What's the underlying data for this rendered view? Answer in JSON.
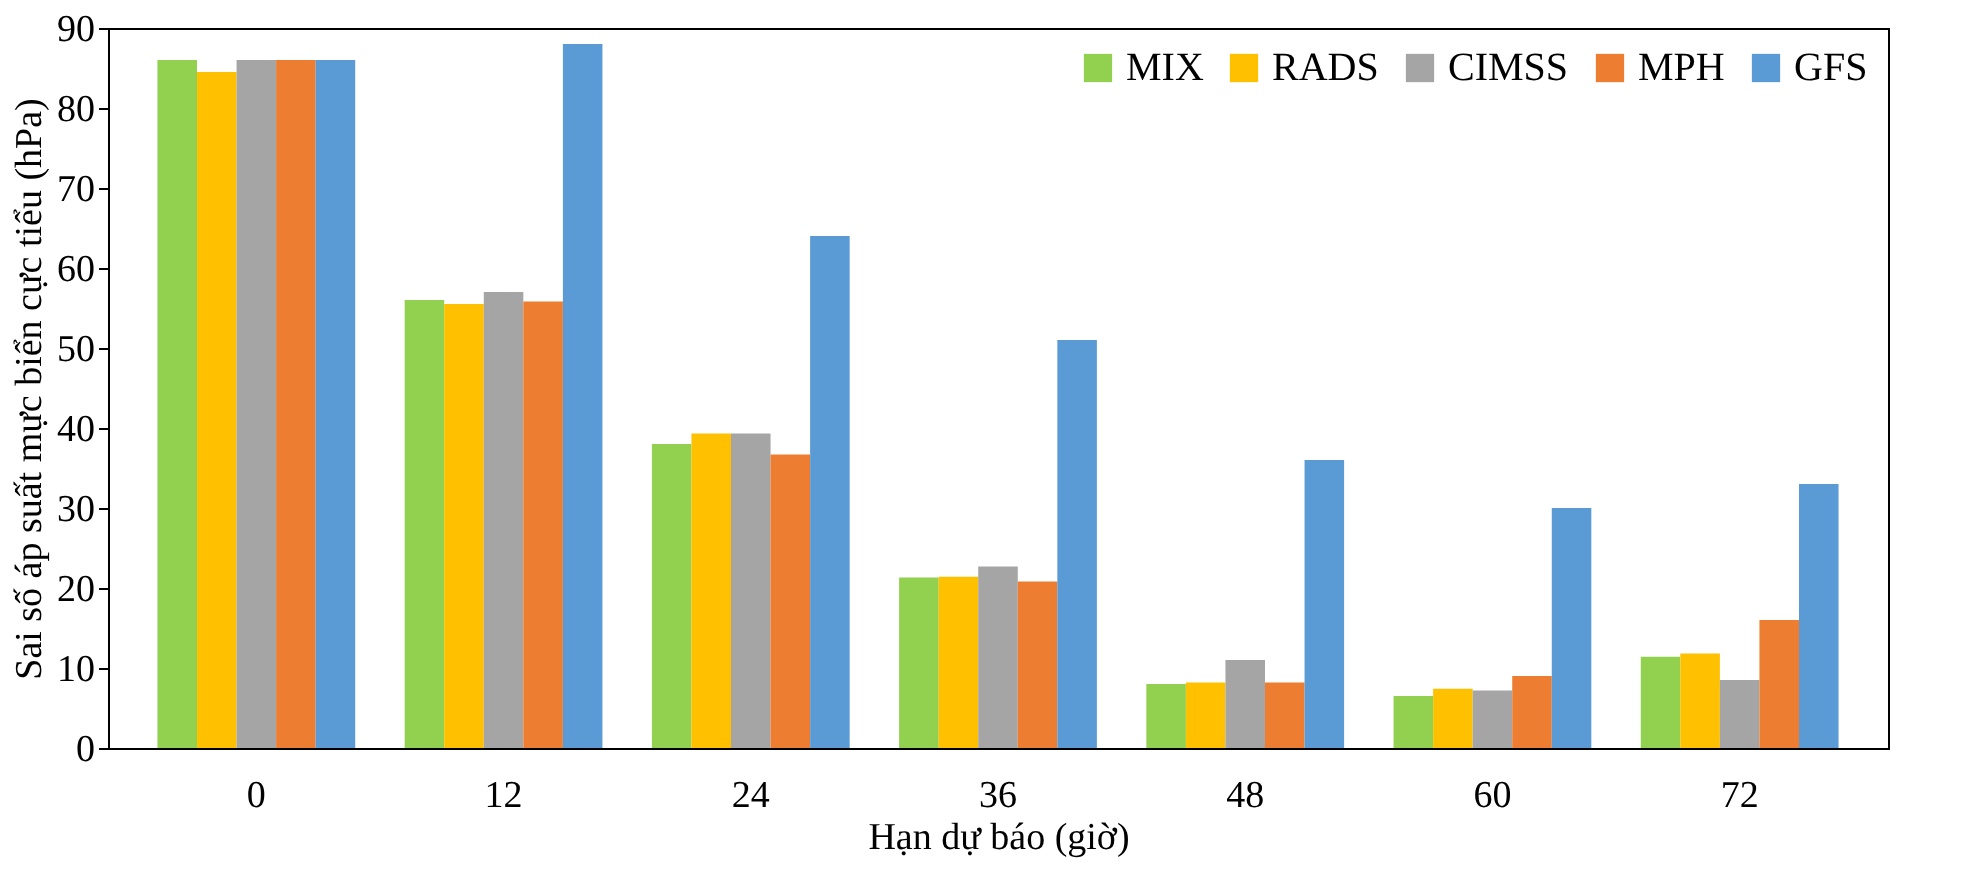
{
  "chart_data": {
    "type": "bar",
    "xlabel": "Hạn dự báo (giờ)",
    "ylabel": "Sai số áp suất mực biển cực tiểu (hPa)",
    "categories": [
      "0",
      "12",
      "24",
      "36",
      "48",
      "60",
      "72"
    ],
    "series": [
      {
        "name": "MIX",
        "color": "#92d050",
        "values": [
          86,
          56,
          38,
          21.3,
          8,
          6.5,
          11.4
        ]
      },
      {
        "name": "RADS",
        "color": "#ffc000",
        "values": [
          84.5,
          55.5,
          39.3,
          21.4,
          8.2,
          7.4,
          11.8
        ]
      },
      {
        "name": "CIMSS",
        "color": "#a5a5a5",
        "values": [
          86,
          57,
          39.3,
          22.7,
          11,
          7.2,
          8.5
        ]
      },
      {
        "name": "MPH",
        "color": "#ed7d31",
        "values": [
          86,
          55.8,
          36.7,
          20.8,
          8.2,
          9,
          16
        ]
      },
      {
        "name": "GFS",
        "color": "#5b9bd5",
        "values": [
          86,
          88,
          64,
          51,
          36,
          30,
          33
        ]
      }
    ],
    "ylim": [
      0,
      90
    ],
    "yticks": [
      0,
      10,
      20,
      30,
      40,
      50,
      60,
      70,
      80,
      90
    ],
    "grid": false,
    "legend": "top right"
  }
}
